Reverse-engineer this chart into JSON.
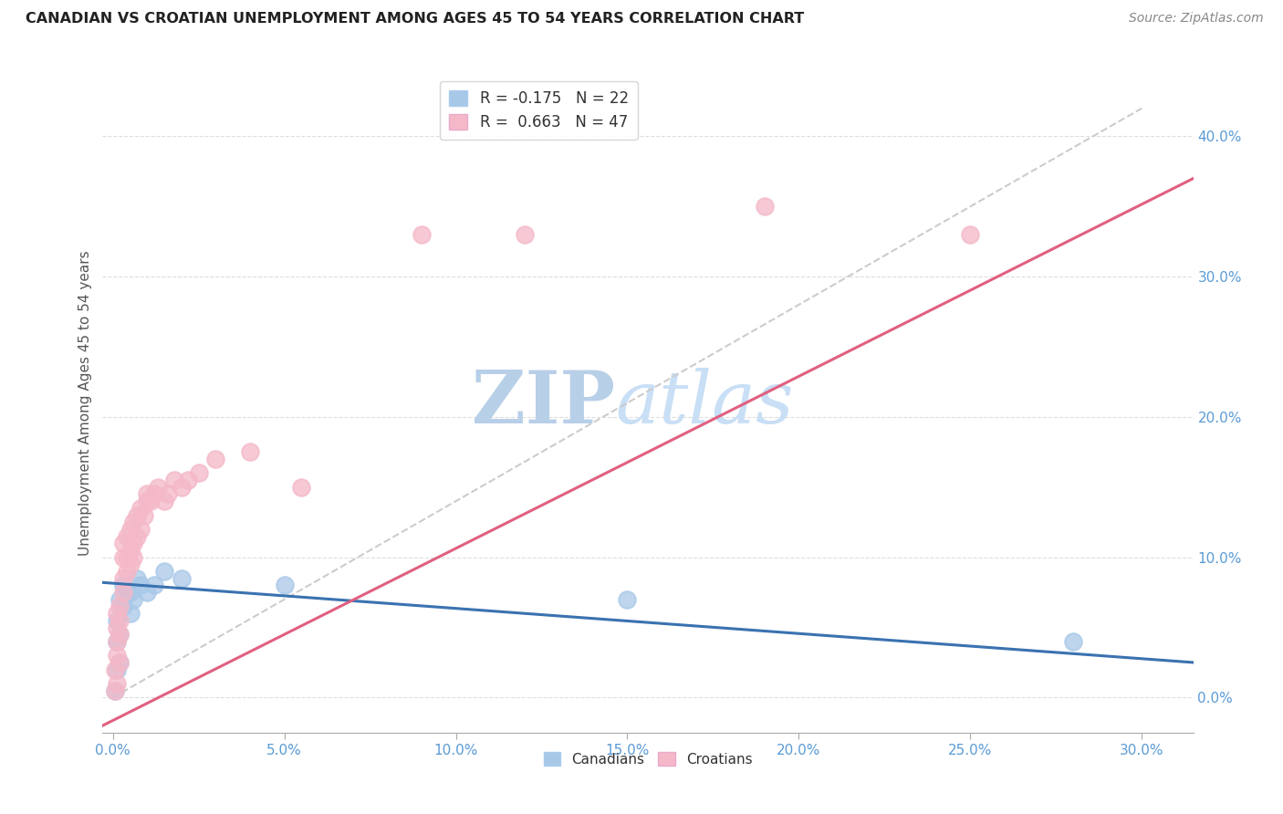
{
  "title": "CANADIAN VS CROATIAN UNEMPLOYMENT AMONG AGES 45 TO 54 YEARS CORRELATION CHART",
  "source": "Source: ZipAtlas.com",
  "xlabel_ticks": [
    0.0,
    0.05,
    0.1,
    0.15,
    0.2,
    0.25,
    0.3
  ],
  "ylabel_ticks": [
    0.0,
    0.1,
    0.2,
    0.3,
    0.4
  ],
  "xlim": [
    -0.003,
    0.315
  ],
  "ylim": [
    -0.025,
    0.445
  ],
  "ylabel": "Unemployment Among Ages 45 to 54 years",
  "canadians_R": -0.175,
  "canadians_N": 22,
  "croatians_R": 0.663,
  "croatians_N": 47,
  "canadian_color": "#a8c8e8",
  "croatian_color": "#f4b8c8",
  "canadian_line_color": "#3a72b0",
  "croatian_line_color": "#e06080",
  "diagonal_color": "#cccccc",
  "watermark_text": "ZIPatlas",
  "watermark_color": "#d0e4f4",
  "background_color": "#ffffff",
  "canadians_x": [
    0.0005,
    0.001,
    0.001,
    0.001,
    0.002,
    0.002,
    0.002,
    0.003,
    0.003,
    0.004,
    0.005,
    0.005,
    0.006,
    0.007,
    0.008,
    0.01,
    0.012,
    0.015,
    0.02,
    0.05,
    0.15,
    0.28
  ],
  "canadians_y": [
    0.005,
    0.02,
    0.04,
    0.055,
    0.025,
    0.045,
    0.07,
    0.065,
    0.08,
    0.075,
    0.06,
    0.075,
    0.07,
    0.085,
    0.08,
    0.075,
    0.08,
    0.09,
    0.085,
    0.08,
    0.07,
    0.04
  ],
  "croatians_x": [
    0.0005,
    0.0005,
    0.001,
    0.001,
    0.001,
    0.001,
    0.001,
    0.002,
    0.002,
    0.002,
    0.002,
    0.003,
    0.003,
    0.003,
    0.003,
    0.004,
    0.004,
    0.004,
    0.005,
    0.005,
    0.005,
    0.006,
    0.006,
    0.006,
    0.007,
    0.007,
    0.008,
    0.008,
    0.009,
    0.01,
    0.01,
    0.011,
    0.012,
    0.013,
    0.015,
    0.016,
    0.018,
    0.02,
    0.022,
    0.025,
    0.03,
    0.04,
    0.055,
    0.09,
    0.12,
    0.19,
    0.25
  ],
  "croatians_y": [
    0.005,
    0.02,
    0.01,
    0.03,
    0.04,
    0.05,
    0.06,
    0.025,
    0.045,
    0.055,
    0.065,
    0.075,
    0.085,
    0.1,
    0.11,
    0.09,
    0.1,
    0.115,
    0.095,
    0.105,
    0.12,
    0.1,
    0.11,
    0.125,
    0.115,
    0.13,
    0.12,
    0.135,
    0.13,
    0.14,
    0.145,
    0.14,
    0.145,
    0.15,
    0.14,
    0.145,
    0.155,
    0.15,
    0.155,
    0.16,
    0.17,
    0.175,
    0.15,
    0.33,
    0.33,
    0.35,
    0.33
  ],
  "canadian_trend_x": [
    -0.003,
    0.315
  ],
  "canadian_trend_y": [
    0.082,
    0.025
  ],
  "croatian_trend_x": [
    -0.003,
    0.315
  ],
  "croatian_trend_y": [
    -0.02,
    0.37
  ]
}
